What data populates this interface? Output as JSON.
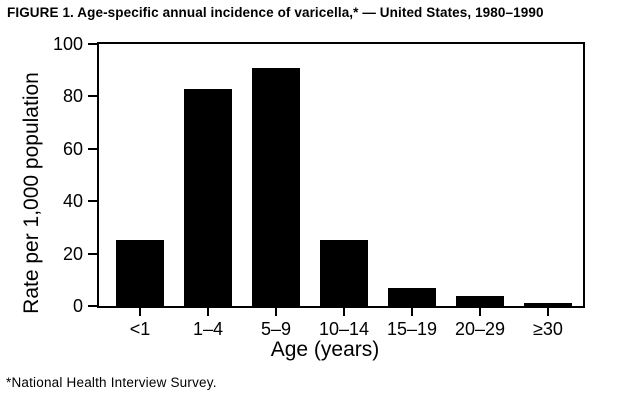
{
  "figure": {
    "title": "FIGURE 1. Age-specific annual incidence of varicella,* — United States, 1980–1990",
    "footnote": "*National Health Interview Survey."
  },
  "chart_data": {
    "type": "bar",
    "categories": [
      "<1",
      "1–4",
      "5–9",
      "10–14",
      "15–19",
      "20–29",
      "≥30"
    ],
    "values": [
      25,
      83,
      91,
      25,
      7,
      4,
      1
    ],
    "title": "FIGURE 1. Age-specific annual incidence of varicella,* — United States, 1980–1990",
    "xlabel": "Age (years)",
    "ylabel": "Rate per 1,000 population",
    "ylim": [
      0,
      100
    ],
    "yticks": [
      0,
      20,
      40,
      60,
      80,
      100
    ],
    "bar_color": "#000000",
    "background_color": "#ffffff",
    "axis_color": "#000000",
    "grid": false,
    "legend": false
  }
}
